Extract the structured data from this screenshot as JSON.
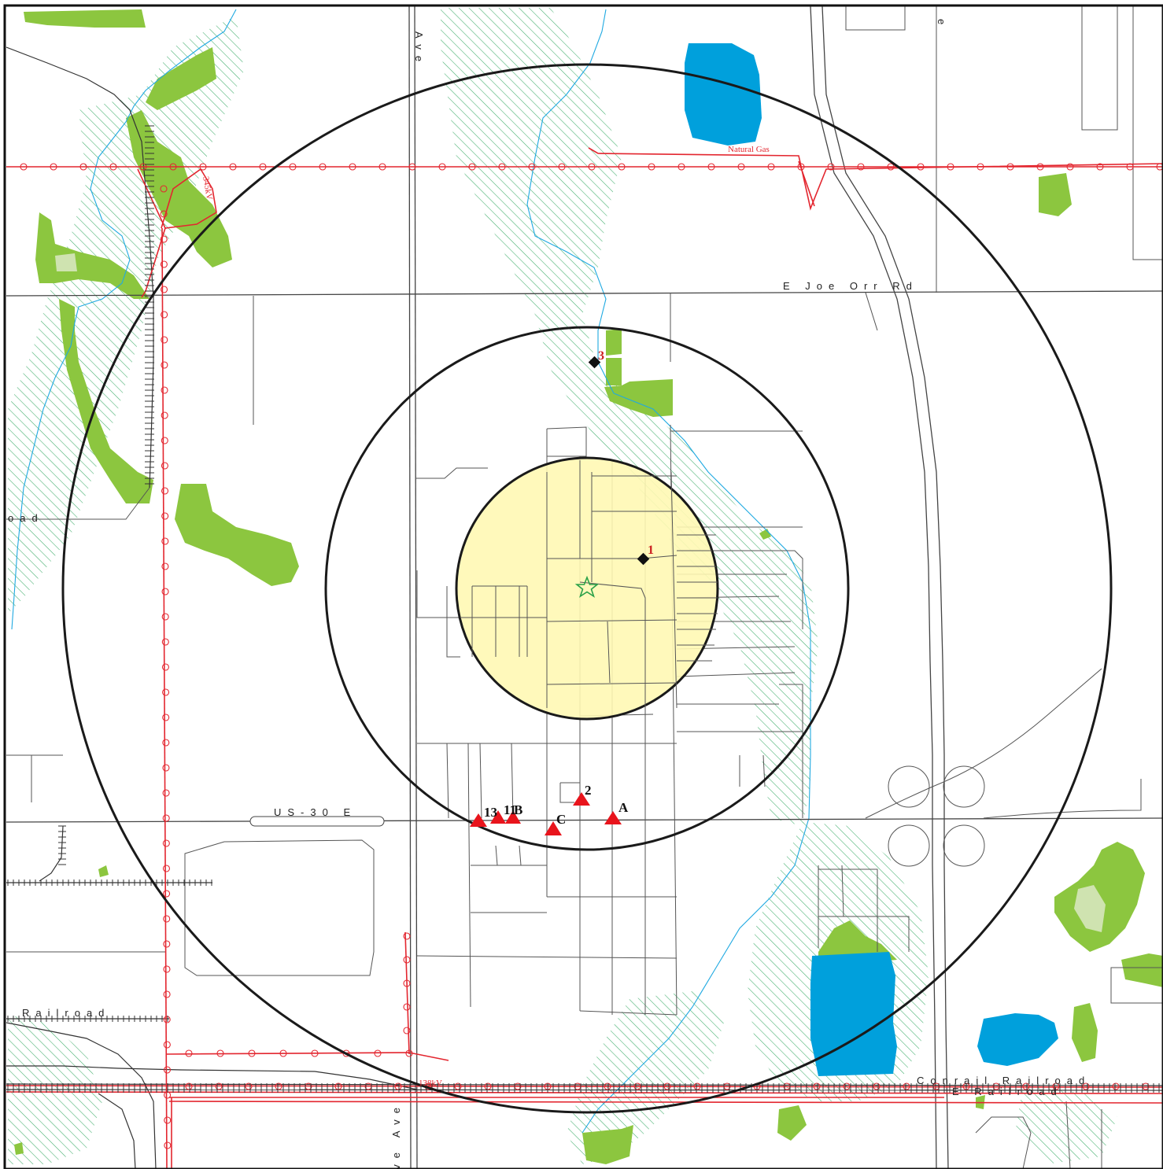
{
  "map": {
    "colors": {
      "background": "#ffffff",
      "vegetation": "#8cc63f",
      "vegetation_light": "#cfe3b0",
      "water": "#00a0dc",
      "stream": "#1fa9e1",
      "wetland_hatch": "#3fae6b",
      "pipeline": "#e3262f",
      "buffer_fill": "#fff8b4",
      "ring": "#1a1a1a",
      "site_marker": "#e8141c",
      "diamond": "#111111",
      "center_star": "#2aa148"
    },
    "road_labels": {
      "joe_orr": "E Joe Orr Rd",
      "us30": "US-30 E",
      "ave_top": "Ave",
      "ave_bottom": "ve Ave",
      "road_left": "oad",
      "top_right_fragment": "e"
    },
    "railroad_labels": {
      "railroad_left": "Railroad",
      "conrail": "Conrail Railroad",
      "second_railroad": "E Railroad"
    },
    "utility_labels": {
      "natural_gas": "Natural Gas",
      "power_kv_1": "345kV",
      "power_kv_2": "138kV"
    },
    "numbered_sites": [
      {
        "label": "1",
        "icon": "diamond"
      },
      {
        "label": "3",
        "icon": "diamond"
      }
    ],
    "lettered_sites": [
      {
        "label": "A",
        "icon": "triangle"
      },
      {
        "label": "B",
        "icon": "triangle"
      },
      {
        "label": "C",
        "icon": "triangle"
      },
      {
        "label": "2",
        "icon": "triangle"
      },
      {
        "label": "11",
        "icon": "triangle"
      },
      {
        "label": "13",
        "icon": "triangle"
      }
    ],
    "center_marker": {
      "icon": "star"
    }
  }
}
